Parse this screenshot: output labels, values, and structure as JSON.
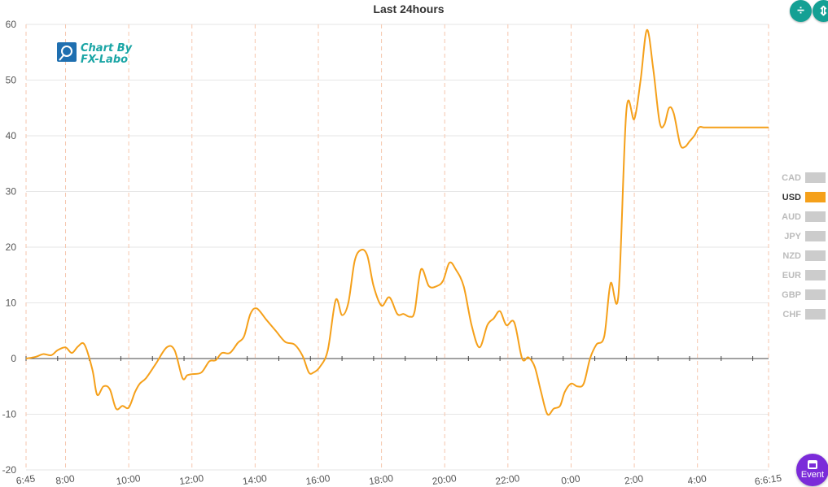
{
  "chart_data": {
    "type": "line",
    "title": "Last 24hours",
    "ylim": [
      -20,
      60
    ],
    "yticks": [
      60,
      50,
      40,
      30,
      20,
      10,
      0,
      -10,
      -20
    ],
    "xticks": [
      "6:45",
      "8:00",
      "10:00",
      "12:00",
      "14:00",
      "16:00",
      "18:00",
      "20:00",
      "22:00",
      "0:00",
      "2:00",
      "4:00",
      "6:6:15"
    ],
    "xtick_hours": [
      0,
      1.25,
      3.25,
      5.25,
      7.25,
      9.25,
      11.25,
      13.25,
      15.25,
      17.25,
      19.25,
      21.25,
      23.5
    ],
    "x_range_hours": [
      0,
      23.5
    ],
    "series": [
      {
        "name": "USD",
        "color": "#f5a01a",
        "x": [
          0,
          0.3,
          0.55,
          0.8,
          1.0,
          1.25,
          1.45,
          1.65,
          1.85,
          2.1,
          2.25,
          2.45,
          2.65,
          2.85,
          3.05,
          3.25,
          3.45,
          3.6,
          3.8,
          4.1,
          4.45,
          4.7,
          4.95,
          5.1,
          5.25,
          5.55,
          5.8,
          6.0,
          6.2,
          6.45,
          6.7,
          6.9,
          7.1,
          7.3,
          7.6,
          7.9,
          8.2,
          8.5,
          8.75,
          8.95,
          9.1,
          9.3,
          9.55,
          9.8,
          10.0,
          10.2,
          10.4,
          10.6,
          10.8,
          11.0,
          11.25,
          11.5,
          11.75,
          11.95,
          12.15,
          12.3,
          12.5,
          12.75,
          13.0,
          13.2,
          13.4,
          13.6,
          13.85,
          14.1,
          14.35,
          14.6,
          14.8,
          15.0,
          15.2,
          15.45,
          15.7,
          15.9,
          16.1,
          16.3,
          16.5,
          16.7,
          16.9,
          17.05,
          17.25,
          17.45,
          17.65,
          17.85,
          18.05,
          18.3,
          18.5,
          18.75,
          19.0,
          19.25,
          19.45,
          19.65,
          19.85,
          20.05,
          20.2,
          20.35,
          20.5,
          20.7,
          20.85,
          21.0,
          21.15,
          21.3,
          21.45,
          21.65,
          21.8,
          22.0,
          22.2,
          22.45,
          22.65,
          22.85,
          23.05,
          23.3,
          23.5
        ],
        "values": [
          0,
          0.3,
          0.8,
          0.6,
          1.5,
          2.0,
          1.0,
          2.2,
          2.5,
          -2.0,
          -6.5,
          -5.0,
          -5.5,
          -9.0,
          -8.5,
          -8.8,
          -6.0,
          -4.5,
          -3.5,
          -1.0,
          2.0,
          1.5,
          -3.5,
          -3.0,
          -2.8,
          -2.5,
          -0.5,
          -0.3,
          1.0,
          1.0,
          2.8,
          4.0,
          8.0,
          9.0,
          7.0,
          5.0,
          3.0,
          2.5,
          0.5,
          -2.5,
          -2.5,
          -1.5,
          1.5,
          10.5,
          7.8,
          10.0,
          17.5,
          19.5,
          18.5,
          13.0,
          9.5,
          11.0,
          8.0,
          8.0,
          7.5,
          8.5,
          16.0,
          13.0,
          13.0,
          14.0,
          17.2,
          16.0,
          13.0,
          6.0,
          2.0,
          6.0,
          7.2,
          8.5,
          6.0,
          6.5,
          0,
          0.2,
          -1.5,
          -6.0,
          -10.0,
          -9.0,
          -8.5,
          -6.0,
          -4.5,
          -5.0,
          -4.5,
          0,
          2.5,
          4.0,
          13.5,
          11.5,
          44.5,
          43.0,
          50.0,
          59.0,
          52.0,
          42.5,
          42.0,
          45.0,
          44.0,
          38.5,
          38.0,
          39.0,
          40.0,
          41.5,
          41.5,
          41.5,
          41.5,
          41.5,
          41.5,
          41.5,
          41.5,
          41.5,
          41.5,
          41.5,
          41.5
        ]
      }
    ],
    "legend": {
      "placement": "right",
      "items": [
        {
          "name": "CAD",
          "active": false,
          "color": "#cccccc"
        },
        {
          "name": "USD",
          "active": true,
          "color": "#f5a01a"
        },
        {
          "name": "AUD",
          "active": false,
          "color": "#cccccc"
        },
        {
          "name": "JPY",
          "active": false,
          "color": "#cccccc"
        },
        {
          "name": "NZD",
          "active": false,
          "color": "#cccccc"
        },
        {
          "name": "EUR",
          "active": false,
          "color": "#cccccc"
        },
        {
          "name": "GBP",
          "active": false,
          "color": "#cccccc"
        },
        {
          "name": "CHF",
          "active": false,
          "color": "#cccccc"
        }
      ]
    },
    "grid": true
  },
  "logo": {
    "line1": "Chart By",
    "line2": "FX-Labo",
    "icon": "chart-logo-icon"
  },
  "controls": {
    "event_label": "Event",
    "zoom_icons": [
      "compress-vertical-icon",
      "expand-vertical-icon"
    ],
    "event_icon": "calendar-icon"
  }
}
